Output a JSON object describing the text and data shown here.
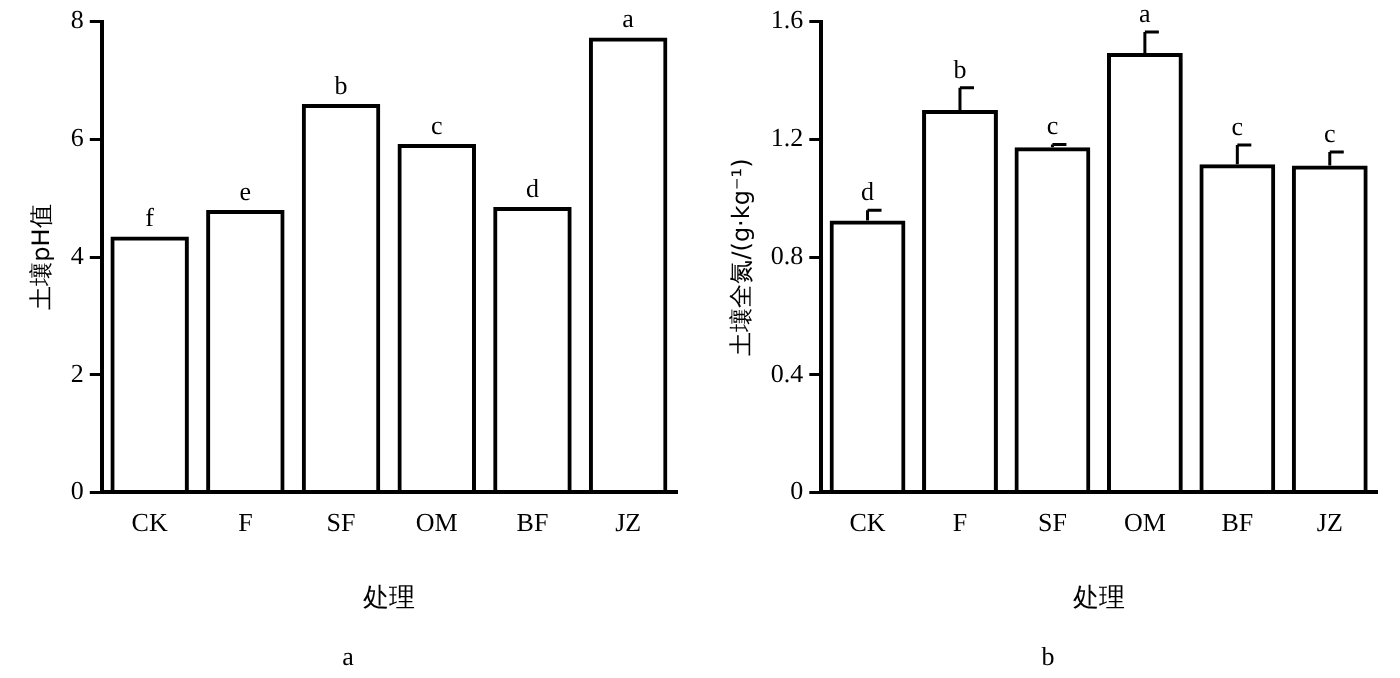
{
  "chart_data": [
    {
      "type": "bar",
      "title": "a",
      "xlabel": "处理",
      "ylabel": "土壤pH值",
      "categories": [
        "CK",
        "F",
        "SF",
        "OM",
        "BF",
        "JZ"
      ],
      "values": [
        4.35,
        4.8,
        6.6,
        5.92,
        4.85,
        7.73
      ],
      "color": "#000000",
      "ylim": [
        0,
        8
      ],
      "yticks": [
        0,
        2,
        4,
        6,
        8
      ],
      "grid": false,
      "legend": false,
      "annotations": [
        {
          "text": "f",
          "x": "CK",
          "y": 4.35
        },
        {
          "text": "e",
          "x": "F",
          "y": 4.8
        },
        {
          "text": "b",
          "x": "SF",
          "y": 6.6
        },
        {
          "text": "c",
          "x": "OM",
          "y": 5.92
        },
        {
          "text": "d",
          "x": "BF",
          "y": 4.85
        },
        {
          "text": "a",
          "x": "JZ",
          "y": 7.73
        }
      ]
    },
    {
      "type": "bar",
      "title": "b",
      "xlabel": "处理",
      "ylabel": "土壤全氮/(g·kg⁻¹)",
      "categories": [
        "CK",
        "F",
        "SF",
        "OM",
        "BF",
        "JZ"
      ],
      "values": [
        0.924,
        1.3,
        1.173,
        1.493,
        1.115,
        1.111
      ],
      "errors": [
        [
          0.924,
          0.959
        ],
        [
          1.3,
          1.375
        ],
        [
          1.173,
          1.182
        ],
        [
          1.493,
          1.565
        ],
        [
          1.115,
          1.181
        ],
        [
          1.111,
          1.157
        ]
      ],
      "color": "#000000",
      "ylim": [
        0,
        1.6
      ],
      "yticks": [
        0,
        {
          "value": 0.4,
          "label": "0.4"
        },
        {
          "value": 0.8,
          "label": "0.8"
        },
        {
          "value": 1.2,
          "label": "1.2"
        },
        {
          "value": 1.6,
          "label": "1.6"
        }
      ],
      "grid": false,
      "legend": false,
      "annotations": [
        {
          "text": "d",
          "x": "CK",
          "y": 0.959
        },
        {
          "text": "b",
          "x": "F",
          "y": 1.375
        },
        {
          "text": "c",
          "x": "SF",
          "y": 1.182
        },
        {
          "text": "a",
          "x": "OM",
          "y": 1.565
        },
        {
          "text": "c",
          "x": "BF",
          "y": 1.181
        },
        {
          "text": "c",
          "x": "JZ",
          "y": 1.157
        }
      ]
    }
  ]
}
